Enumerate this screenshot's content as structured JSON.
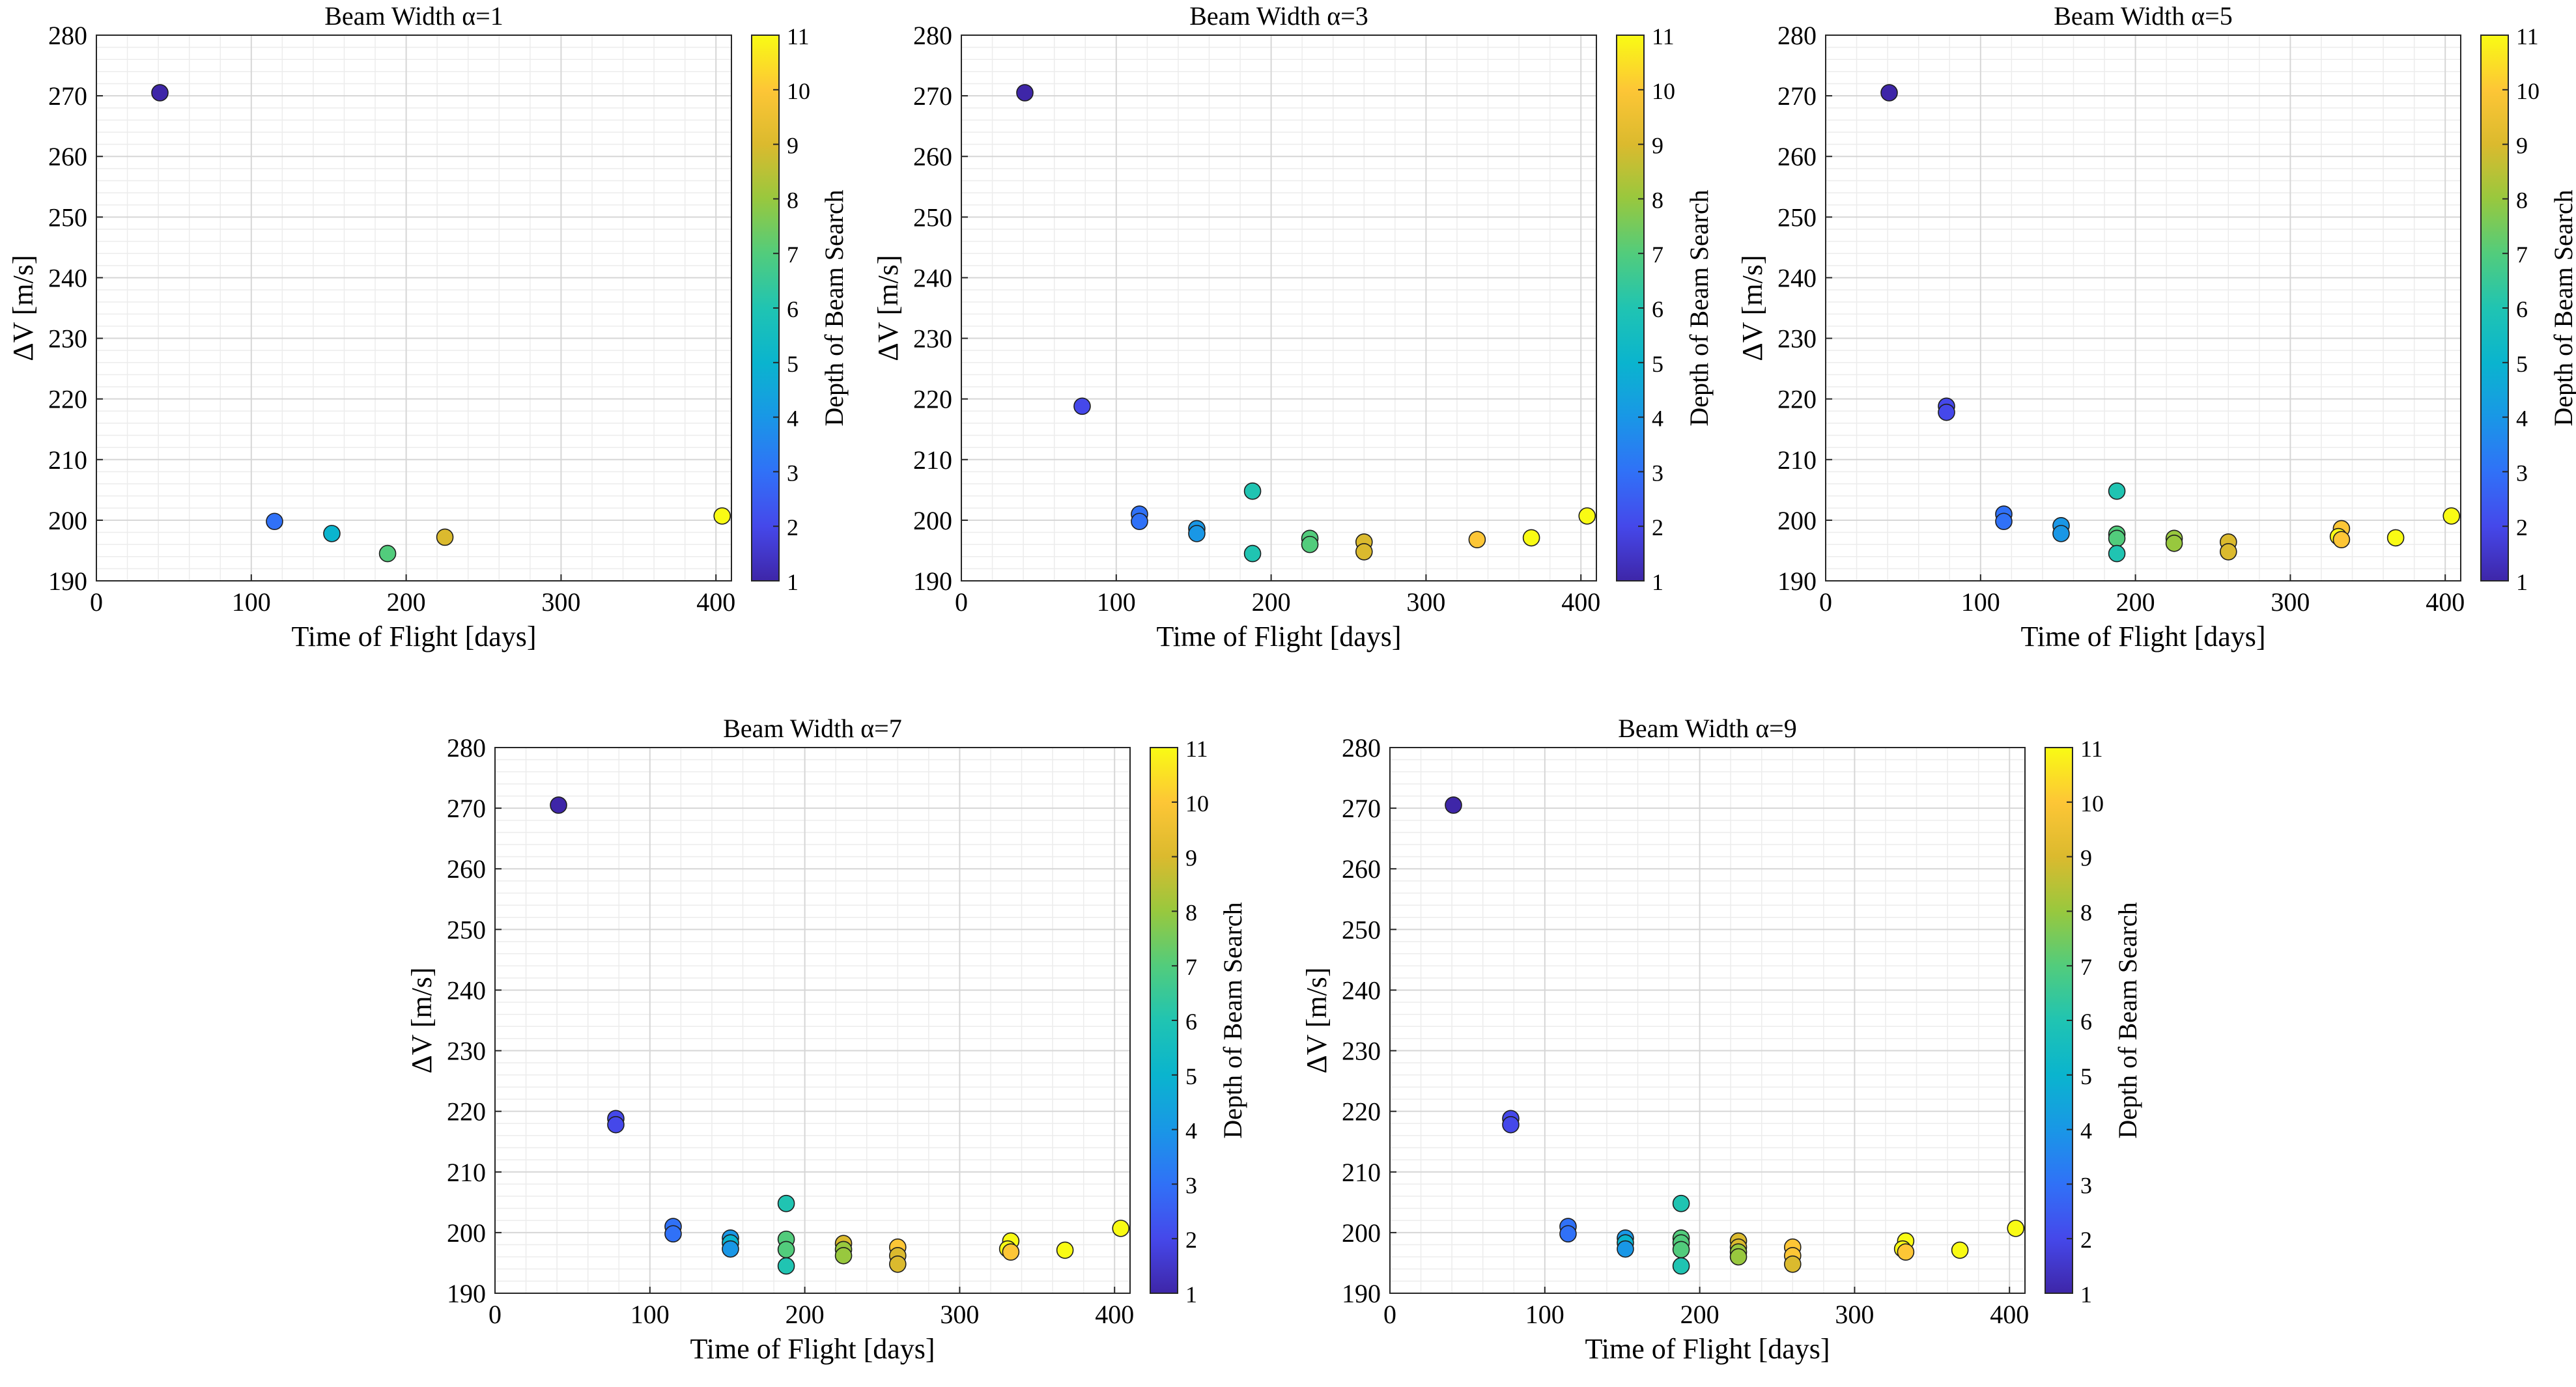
{
  "figure": {
    "xlabel": "Time of Flight [days]",
    "ylabel": "ΔV [m/s]",
    "colorbar_label": "Depth of Beam Search",
    "colorbar_ticks": [
      1,
      2,
      3,
      4,
      5,
      6,
      7,
      8,
      9,
      10,
      11
    ],
    "x_ticks": [
      0,
      100,
      200,
      300,
      400
    ],
    "y_ticks": [
      190,
      200,
      210,
      220,
      230,
      240,
      250,
      260,
      270,
      280
    ]
  },
  "chart_data": [
    {
      "type": "scatter",
      "title": "Beam Width α=1",
      "xlabel": "Time of Flight [days]",
      "ylabel": "ΔV [m/s]",
      "xlim": [
        0,
        410
      ],
      "ylim": [
        190,
        280
      ],
      "grid": true,
      "colormap": "parula",
      "clim": [
        1,
        11
      ],
      "points": [
        {
          "x": 41,
          "y": 270.5,
          "depth": 1
        },
        {
          "x": 115,
          "y": 199.8,
          "depth": 3
        },
        {
          "x": 152,
          "y": 197.8,
          "depth": 5
        },
        {
          "x": 188,
          "y": 194.5,
          "depth": 7
        },
        {
          "x": 225,
          "y": 197.2,
          "depth": 9
        },
        {
          "x": 404,
          "y": 200.7,
          "depth": 11
        }
      ]
    },
    {
      "type": "scatter",
      "title": "Beam Width α=3",
      "xlabel": "Time of Flight [days]",
      "ylabel": "ΔV [m/s]",
      "xlim": [
        0,
        410
      ],
      "ylim": [
        190,
        280
      ],
      "grid": true,
      "colormap": "parula",
      "clim": [
        1,
        11
      ],
      "points": [
        {
          "x": 41,
          "y": 270.5,
          "depth": 1
        },
        {
          "x": 78,
          "y": 218.8,
          "depth": 2
        },
        {
          "x": 115,
          "y": 201.0,
          "depth": 3
        },
        {
          "x": 115,
          "y": 199.8,
          "depth": 3
        },
        {
          "x": 152,
          "y": 198.6,
          "depth": 4
        },
        {
          "x": 152,
          "y": 197.8,
          "depth": 4
        },
        {
          "x": 188,
          "y": 204.8,
          "depth": 6
        },
        {
          "x": 188,
          "y": 194.5,
          "depth": 6
        },
        {
          "x": 225,
          "y": 197.0,
          "depth": 7
        },
        {
          "x": 225,
          "y": 196.0,
          "depth": 7
        },
        {
          "x": 260,
          "y": 196.4,
          "depth": 9
        },
        {
          "x": 260,
          "y": 194.8,
          "depth": 9
        },
        {
          "x": 333,
          "y": 196.8,
          "depth": 10
        },
        {
          "x": 368,
          "y": 197.1,
          "depth": 11
        },
        {
          "x": 404,
          "y": 200.7,
          "depth": 11
        }
      ]
    },
    {
      "type": "scatter",
      "title": "Beam Width α=5",
      "xlabel": "Time of Flight [days]",
      "ylabel": "ΔV [m/s]",
      "xlim": [
        0,
        410
      ],
      "ylim": [
        190,
        280
      ],
      "grid": true,
      "colormap": "parula",
      "clim": [
        1,
        11
      ],
      "points": [
        {
          "x": 41,
          "y": 270.5,
          "depth": 1
        },
        {
          "x": 78,
          "y": 218.8,
          "depth": 2
        },
        {
          "x": 78,
          "y": 217.8,
          "depth": 2
        },
        {
          "x": 115,
          "y": 201.0,
          "depth": 3
        },
        {
          "x": 115,
          "y": 199.8,
          "depth": 3
        },
        {
          "x": 152,
          "y": 199.1,
          "depth": 4
        },
        {
          "x": 152,
          "y": 197.8,
          "depth": 4
        },
        {
          "x": 188,
          "y": 204.8,
          "depth": 6
        },
        {
          "x": 188,
          "y": 197.7,
          "depth": 7
        },
        {
          "x": 188,
          "y": 197.0,
          "depth": 7
        },
        {
          "x": 188,
          "y": 194.5,
          "depth": 6
        },
        {
          "x": 225,
          "y": 197.0,
          "depth": 8
        },
        {
          "x": 225,
          "y": 196.2,
          "depth": 8
        },
        {
          "x": 260,
          "y": 196.4,
          "depth": 9
        },
        {
          "x": 260,
          "y": 194.8,
          "depth": 9
        },
        {
          "x": 333,
          "y": 198.6,
          "depth": 10
        },
        {
          "x": 331,
          "y": 197.3,
          "depth": 11
        },
        {
          "x": 333,
          "y": 196.8,
          "depth": 10
        },
        {
          "x": 368,
          "y": 197.1,
          "depth": 11
        },
        {
          "x": 404,
          "y": 200.7,
          "depth": 11
        }
      ]
    },
    {
      "type": "scatter",
      "title": "Beam Width α=7",
      "xlabel": "Time of Flight [days]",
      "ylabel": "ΔV [m/s]",
      "xlim": [
        0,
        410
      ],
      "ylim": [
        190,
        280
      ],
      "grid": true,
      "colormap": "parula",
      "clim": [
        1,
        11
      ],
      "points": [
        {
          "x": 41,
          "y": 270.5,
          "depth": 1
        },
        {
          "x": 78,
          "y": 218.8,
          "depth": 2
        },
        {
          "x": 78,
          "y": 217.8,
          "depth": 2
        },
        {
          "x": 115,
          "y": 201.0,
          "depth": 3
        },
        {
          "x": 115,
          "y": 199.8,
          "depth": 3
        },
        {
          "x": 152,
          "y": 199.1,
          "depth": 4
        },
        {
          "x": 152,
          "y": 198.3,
          "depth": 5
        },
        {
          "x": 152,
          "y": 197.3,
          "depth": 4
        },
        {
          "x": 188,
          "y": 204.8,
          "depth": 6
        },
        {
          "x": 188,
          "y": 198.9,
          "depth": 7
        },
        {
          "x": 188,
          "y": 197.2,
          "depth": 7
        },
        {
          "x": 188,
          "y": 194.5,
          "depth": 6
        },
        {
          "x": 225,
          "y": 198.2,
          "depth": 9
        },
        {
          "x": 225,
          "y": 197.2,
          "depth": 8
        },
        {
          "x": 225,
          "y": 196.2,
          "depth": 8
        },
        {
          "x": 260,
          "y": 197.6,
          "depth": 10
        },
        {
          "x": 260,
          "y": 196.2,
          "depth": 9
        },
        {
          "x": 260,
          "y": 194.8,
          "depth": 9
        },
        {
          "x": 333,
          "y": 198.6,
          "depth": 11
        },
        {
          "x": 331,
          "y": 197.3,
          "depth": 11
        },
        {
          "x": 333,
          "y": 196.8,
          "depth": 10
        },
        {
          "x": 368,
          "y": 197.1,
          "depth": 11
        },
        {
          "x": 404,
          "y": 200.7,
          "depth": 11
        }
      ]
    },
    {
      "type": "scatter",
      "title": "Beam Width α=9",
      "xlabel": "Time of Flight [days]",
      "ylabel": "ΔV [m/s]",
      "xlim": [
        0,
        410
      ],
      "ylim": [
        190,
        280
      ],
      "grid": true,
      "colormap": "parula",
      "clim": [
        1,
        11
      ],
      "points": [
        {
          "x": 41,
          "y": 270.5,
          "depth": 1
        },
        {
          "x": 78,
          "y": 218.8,
          "depth": 2
        },
        {
          "x": 78,
          "y": 217.8,
          "depth": 2
        },
        {
          "x": 115,
          "y": 201.0,
          "depth": 3
        },
        {
          "x": 115,
          "y": 199.8,
          "depth": 3
        },
        {
          "x": 152,
          "y": 199.1,
          "depth": 4
        },
        {
          "x": 152,
          "y": 198.3,
          "depth": 5
        },
        {
          "x": 152,
          "y": 197.3,
          "depth": 4
        },
        {
          "x": 188,
          "y": 204.8,
          "depth": 6
        },
        {
          "x": 188,
          "y": 199.1,
          "depth": 7
        },
        {
          "x": 188,
          "y": 198.3,
          "depth": 7
        },
        {
          "x": 188,
          "y": 197.2,
          "depth": 7
        },
        {
          "x": 188,
          "y": 194.5,
          "depth": 6
        },
        {
          "x": 225,
          "y": 198.6,
          "depth": 9
        },
        {
          "x": 225,
          "y": 197.6,
          "depth": 9
        },
        {
          "x": 225,
          "y": 196.8,
          "depth": 8
        },
        {
          "x": 225,
          "y": 196.0,
          "depth": 8
        },
        {
          "x": 260,
          "y": 197.6,
          "depth": 10
        },
        {
          "x": 260,
          "y": 196.2,
          "depth": 10
        },
        {
          "x": 260,
          "y": 194.8,
          "depth": 9
        },
        {
          "x": 333,
          "y": 198.6,
          "depth": 11
        },
        {
          "x": 331,
          "y": 197.3,
          "depth": 11
        },
        {
          "x": 333,
          "y": 196.8,
          "depth": 10
        },
        {
          "x": 368,
          "y": 197.1,
          "depth": 11
        },
        {
          "x": 404,
          "y": 200.7,
          "depth": 11
        }
      ]
    }
  ]
}
